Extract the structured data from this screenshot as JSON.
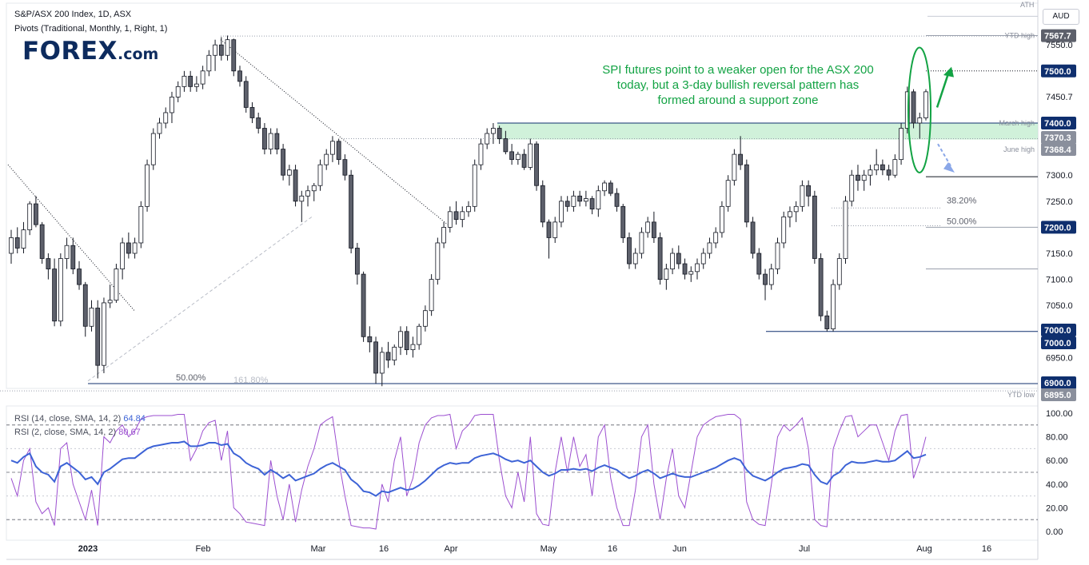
{
  "header": {
    "title": "S&P/ASX 200 Index, 1D, ASX",
    "indicator": "Pivots (Traditional, Monthly, 1, Right, 1)",
    "currency": "AUD"
  },
  "logo": {
    "word": "FOREX",
    "suffix": ".com"
  },
  "annotation": "SPI futures point to a weaker open for the ASX 200 today, but a 3-day bullish reversal pattern has formed around a support zone",
  "colors": {
    "up": "#ffffff",
    "down": "#5d606b",
    "zone": "#c8efd3",
    "navy": "#0f2f6e",
    "arrow": "#13a344",
    "rsi14": "#3d63d6",
    "rsi2": "#9c4fd0"
  },
  "chart_data": {
    "type": "candlestick",
    "title": "S&P/ASX 200 Index, 1D, ASX",
    "price_axis": {
      "ticks": [
        "7550.0",
        "7450.7",
        "7350.0",
        "7300.0",
        "7250.0",
        "7150.0",
        "7100.0",
        "7050.0",
        "6950.0"
      ],
      "ylim": [
        6890,
        7600
      ]
    },
    "price_labels": [
      {
        "value": 7567.7,
        "text": "7567.7",
        "caption": "YTD high",
        "style": "dark"
      },
      {
        "value": 7500.0,
        "text": "7500.0",
        "caption": "",
        "style": "navy"
      },
      {
        "value": 7400.0,
        "text": "7400.0",
        "caption": "March high",
        "style": "navy"
      },
      {
        "value": 7370.3,
        "text": "7370.3",
        "caption": "",
        "style": "grey"
      },
      {
        "value": 7368.4,
        "text": "7368.4",
        "caption": "June high",
        "style": "grey"
      },
      {
        "value": 7200.0,
        "text": "7200.0",
        "caption": "",
        "style": "navy"
      },
      {
        "value": 7000.0,
        "text": "7000.0",
        "caption": "",
        "style": "navy"
      },
      {
        "value": 7000.0,
        "text": "7000.0",
        "caption": "",
        "style": "navy"
      },
      {
        "value": 6900.0,
        "text": "6900.0",
        "caption": "",
        "style": "navy"
      },
      {
        "value": 6895.0,
        "text": "6895.0",
        "caption": "YTD low",
        "style": "grey"
      }
    ],
    "top_caption": "ATH",
    "x_labels": [
      "2023",
      "Feb",
      "Mar",
      "16",
      "Apr",
      "May",
      "16",
      "Jun",
      "Jul",
      "Aug",
      "16"
    ],
    "fib_labels": [
      "38.20%",
      "50.00%",
      "50.00%",
      "161.80%"
    ],
    "support_zone": [
      7368.4,
      7400.0
    ],
    "candles": [
      [
        7150,
        7195,
        7130,
        7180
      ],
      [
        7180,
        7200,
        7150,
        7160
      ],
      [
        7160,
        7210,
        7150,
        7195
      ],
      [
        7195,
        7250,
        7185,
        7245
      ],
      [
        7245,
        7260,
        7200,
        7205
      ],
      [
        7205,
        7210,
        7130,
        7140
      ],
      [
        7140,
        7150,
        7100,
        7120
      ],
      [
        7120,
        7140,
        7010,
        7020
      ],
      [
        7020,
        7150,
        7010,
        7140
      ],
      [
        7140,
        7180,
        7120,
        7165
      ],
      [
        7165,
        7180,
        7110,
        7120
      ],
      [
        7120,
        7135,
        7080,
        7090
      ],
      [
        7090,
        7095,
        6990,
        7010
      ],
      [
        7010,
        7060,
        7000,
        7045
      ],
      [
        7045,
        7060,
        6910,
        6935
      ],
      [
        6935,
        7065,
        6920,
        7055
      ],
      [
        7055,
        7090,
        7045,
        7060
      ],
      [
        7060,
        7130,
        7055,
        7120
      ],
      [
        7120,
        7180,
        7100,
        7170
      ],
      [
        7170,
        7190,
        7140,
        7150
      ],
      [
        7150,
        7180,
        7140,
        7170
      ],
      [
        7170,
        7250,
        7160,
        7240
      ],
      [
        7240,
        7330,
        7230,
        7320
      ],
      [
        7320,
        7390,
        7310,
        7380
      ],
      [
        7380,
        7410,
        7370,
        7400
      ],
      [
        7400,
        7430,
        7390,
        7420
      ],
      [
        7420,
        7460,
        7400,
        7450
      ],
      [
        7450,
        7480,
        7440,
        7470
      ],
      [
        7470,
        7500,
        7460,
        7490
      ],
      [
        7490,
        7500,
        7460,
        7470
      ],
      [
        7470,
        7490,
        7460,
        7475
      ],
      [
        7475,
        7510,
        7465,
        7500
      ],
      [
        7500,
        7540,
        7490,
        7530
      ],
      [
        7530,
        7560,
        7500,
        7550
      ],
      [
        7550,
        7565,
        7520,
        7530
      ],
      [
        7530,
        7568,
        7520,
        7560
      ],
      [
        7560,
        7562,
        7490,
        7500
      ],
      [
        7500,
        7510,
        7470,
        7480
      ],
      [
        7480,
        7490,
        7420,
        7430
      ],
      [
        7430,
        7440,
        7400,
        7410
      ],
      [
        7410,
        7420,
        7380,
        7390
      ],
      [
        7390,
        7400,
        7340,
        7350
      ],
      [
        7350,
        7390,
        7340,
        7380
      ],
      [
        7380,
        7390,
        7340,
        7350
      ],
      [
        7350,
        7360,
        7290,
        7300
      ],
      [
        7300,
        7320,
        7280,
        7310
      ],
      [
        7310,
        7320,
        7240,
        7250
      ],
      [
        7250,
        7270,
        7210,
        7260
      ],
      [
        7260,
        7280,
        7240,
        7270
      ],
      [
        7270,
        7285,
        7250,
        7280
      ],
      [
        7280,
        7330,
        7270,
        7320
      ],
      [
        7320,
        7350,
        7310,
        7340
      ],
      [
        7340,
        7375,
        7325,
        7365
      ],
      [
        7365,
        7370,
        7320,
        7330
      ],
      [
        7330,
        7340,
        7290,
        7300
      ],
      [
        7300,
        7310,
        7150,
        7160
      ],
      [
        7160,
        7170,
        7090,
        7110
      ],
      [
        7110,
        7115,
        6980,
        6990
      ],
      [
        6990,
        7010,
        6960,
        6980
      ],
      [
        6980,
        6990,
        6900,
        6920
      ],
      [
        6920,
        6970,
        6895,
        6960
      ],
      [
        6960,
        6980,
        6930,
        6945
      ],
      [
        6945,
        6975,
        6935,
        6970
      ],
      [
        6970,
        7010,
        6955,
        7000
      ],
      [
        7000,
        7010,
        6955,
        6965
      ],
      [
        6965,
        6990,
        6950,
        6975
      ],
      [
        6975,
        7015,
        6965,
        7010
      ],
      [
        7010,
        7050,
        7000,
        7040
      ],
      [
        7040,
        7110,
        7030,
        7100
      ],
      [
        7100,
        7180,
        7090,
        7170
      ],
      [
        7170,
        7210,
        7160,
        7200
      ],
      [
        7200,
        7240,
        7190,
        7230
      ],
      [
        7230,
        7250,
        7205,
        7215
      ],
      [
        7215,
        7240,
        7200,
        7230
      ],
      [
        7230,
        7250,
        7220,
        7240
      ],
      [
        7240,
        7330,
        7230,
        7320
      ],
      [
        7320,
        7370,
        7310,
        7360
      ],
      [
        7360,
        7390,
        7350,
        7380
      ],
      [
        7380,
        7400,
        7360,
        7390
      ],
      [
        7390,
        7395,
        7360,
        7370
      ],
      [
        7370,
        7385,
        7340,
        7345
      ],
      [
        7345,
        7360,
        7320,
        7330
      ],
      [
        7330,
        7345,
        7320,
        7340
      ],
      [
        7340,
        7350,
        7310,
        7315
      ],
      [
        7315,
        7370,
        7310,
        7360
      ],
      [
        7360,
        7365,
        7270,
        7280
      ],
      [
        7280,
        7290,
        7200,
        7210
      ],
      [
        7210,
        7215,
        7140,
        7180
      ],
      [
        7180,
        7220,
        7170,
        7210
      ],
      [
        7210,
        7260,
        7200,
        7250
      ],
      [
        7250,
        7260,
        7230,
        7240
      ],
      [
        7240,
        7270,
        7230,
        7260
      ],
      [
        7260,
        7270,
        7240,
        7250
      ],
      [
        7250,
        7270,
        7240,
        7255
      ],
      [
        7255,
        7260,
        7225,
        7235
      ],
      [
        7235,
        7280,
        7220,
        7270
      ],
      [
        7270,
        7290,
        7260,
        7285
      ],
      [
        7285,
        7290,
        7260,
        7265
      ],
      [
        7265,
        7275,
        7230,
        7240
      ],
      [
        7240,
        7245,
        7170,
        7180
      ],
      [
        7180,
        7190,
        7120,
        7130
      ],
      [
        7130,
        7160,
        7120,
        7150
      ],
      [
        7150,
        7200,
        7140,
        7190
      ],
      [
        7190,
        7220,
        7180,
        7210
      ],
      [
        7210,
        7230,
        7170,
        7180
      ],
      [
        7180,
        7190,
        7090,
        7100
      ],
      [
        7100,
        7130,
        7080,
        7120
      ],
      [
        7120,
        7160,
        7110,
        7150
      ],
      [
        7150,
        7165,
        7120,
        7130
      ],
      [
        7130,
        7140,
        7100,
        7110
      ],
      [
        7110,
        7125,
        7095,
        7115
      ],
      [
        7115,
        7140,
        7100,
        7130
      ],
      [
        7130,
        7160,
        7120,
        7150
      ],
      [
        7150,
        7180,
        7140,
        7170
      ],
      [
        7170,
        7200,
        7160,
        7190
      ],
      [
        7190,
        7250,
        7180,
        7240
      ],
      [
        7240,
        7300,
        7230,
        7290
      ],
      [
        7290,
        7350,
        7280,
        7340
      ],
      [
        7340,
        7375,
        7310,
        7320
      ],
      [
        7320,
        7330,
        7200,
        7210
      ],
      [
        7210,
        7220,
        7140,
        7150
      ],
      [
        7150,
        7160,
        7100,
        7110
      ],
      [
        7110,
        7120,
        7060,
        7090
      ],
      [
        7090,
        7130,
        7080,
        7120
      ],
      [
        7120,
        7180,
        7110,
        7170
      ],
      [
        7170,
        7230,
        7160,
        7220
      ],
      [
        7220,
        7240,
        7200,
        7230
      ],
      [
        7230,
        7250,
        7210,
        7240
      ],
      [
        7240,
        7290,
        7230,
        7280
      ],
      [
        7280,
        7290,
        7240,
        7260
      ],
      [
        7260,
        7270,
        7130,
        7140
      ],
      [
        7140,
        7150,
        7020,
        7030
      ],
      [
        7030,
        7040,
        7000,
        7005
      ],
      [
        7005,
        7100,
        7000,
        7090
      ],
      [
        7090,
        7150,
        7080,
        7140
      ],
      [
        7140,
        7260,
        7130,
        7250
      ],
      [
        7250,
        7310,
        7240,
        7300
      ],
      [
        7300,
        7320,
        7270,
        7290
      ],
      [
        7290,
        7310,
        7270,
        7300
      ],
      [
        7300,
        7320,
        7280,
        7310
      ],
      [
        7310,
        7350,
        7300,
        7320
      ],
      [
        7320,
        7330,
        7300,
        7310
      ],
      [
        7310,
        7320,
        7290,
        7300
      ],
      [
        7300,
        7340,
        7295,
        7330
      ],
      [
        7330,
        7400,
        7320,
        7390
      ],
      [
        7390,
        7470,
        7380,
        7460
      ],
      [
        7460,
        7465,
        7390,
        7400
      ],
      [
        7400,
        7420,
        7370,
        7410
      ],
      [
        7410,
        7465,
        7405,
        7460
      ]
    ],
    "rsi_panel": {
      "legend14": "RSI (14, close, SMA, 14, 2)",
      "value14": "64.84",
      "legend2": "RSI (2, close, SMA, 14, 2)",
      "value2": "80.67",
      "ticks": [
        "100.00",
        "80.00",
        "60.00",
        "40.00",
        "20.00",
        "0.00"
      ],
      "ylim": [
        0,
        100
      ],
      "rsi14": [
        60,
        58,
        63,
        66,
        55,
        50,
        48,
        42,
        55,
        58,
        54,
        50,
        44,
        46,
        40,
        50,
        53,
        57,
        61,
        62,
        62,
        66,
        70,
        72,
        73,
        74,
        75,
        75,
        76,
        72,
        72,
        73,
        75,
        75,
        73,
        74,
        66,
        63,
        58,
        55,
        53,
        48,
        52,
        49,
        45,
        48,
        43,
        45,
        47,
        49,
        53,
        56,
        58,
        55,
        52,
        44,
        40,
        34,
        33,
        30,
        34,
        33,
        35,
        37,
        35,
        36,
        39,
        43,
        48,
        53,
        56,
        58,
        57,
        58,
        58,
        62,
        64,
        65,
        66,
        64,
        61,
        59,
        60,
        58,
        60,
        55,
        50,
        47,
        49,
        52,
        52,
        53,
        52,
        53,
        51,
        54,
        56,
        54,
        52,
        48,
        45,
        47,
        50,
        52,
        49,
        45,
        47,
        49,
        47,
        46,
        46,
        48,
        50,
        52,
        54,
        57,
        60,
        62,
        60,
        52,
        47,
        45,
        43,
        46,
        50,
        53,
        54,
        55,
        57,
        56,
        48,
        42,
        40,
        47,
        50,
        56,
        59,
        58,
        58,
        59,
        60,
        59,
        59,
        60,
        64,
        68,
        62,
        63,
        65
      ],
      "rsi2": [
        45,
        30,
        60,
        70,
        25,
        15,
        20,
        5,
        70,
        75,
        40,
        25,
        10,
        35,
        5,
        80,
        75,
        85,
        90,
        80,
        85,
        95,
        97,
        98,
        98,
        98,
        98,
        99,
        99,
        60,
        70,
        85,
        92,
        94,
        60,
        85,
        20,
        15,
        8,
        7,
        6,
        5,
        60,
        30,
        10,
        40,
        8,
        35,
        55,
        70,
        90,
        94,
        97,
        60,
        30,
        5,
        4,
        3,
        3,
        2,
        40,
        25,
        60,
        80,
        30,
        45,
        75,
        90,
        96,
        98,
        98,
        99,
        70,
        85,
        90,
        98,
        99,
        99,
        99,
        60,
        30,
        20,
        50,
        25,
        80,
        15,
        6,
        5,
        50,
        80,
        50,
        80,
        55,
        65,
        30,
        80,
        90,
        45,
        20,
        5,
        5,
        35,
        80,
        90,
        40,
        10,
        45,
        70,
        30,
        20,
        50,
        80,
        90,
        94,
        97,
        98,
        99,
        99,
        95,
        25,
        10,
        6,
        5,
        40,
        80,
        90,
        85,
        90,
        96,
        70,
        10,
        5,
        4,
        70,
        85,
        97,
        98,
        80,
        85,
        90,
        90,
        75,
        60,
        85,
        98,
        99,
        45,
        60,
        80
      ]
    }
  }
}
